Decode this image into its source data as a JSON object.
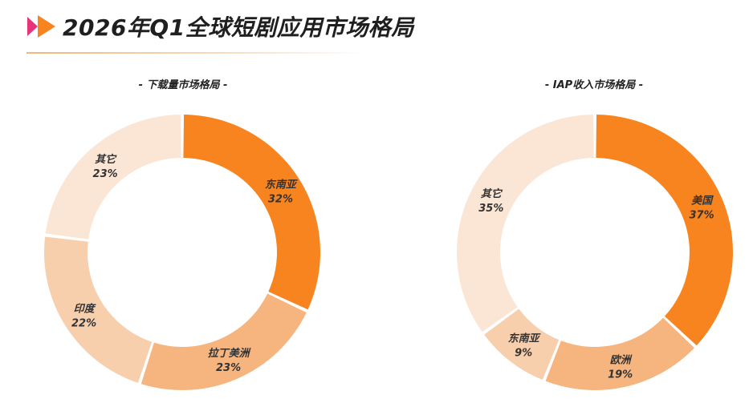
{
  "page": {
    "title": "2026年Q1全球短剧应用市场格局"
  },
  "colors": {
    "logo_pink": "#e8337a",
    "logo_orange": "#f7841f",
    "accent_orange": "#f7841f"
  },
  "chart_data": [
    {
      "type": "pie",
      "title": "- 下载量市场格局 -",
      "categories": [
        "东南亚",
        "拉丁美洲",
        "印度",
        "其它"
      ],
      "values": [
        32,
        23,
        22,
        23
      ],
      "value_labels": [
        "32%",
        "23%",
        "22%",
        "23%"
      ],
      "colors": [
        "#f7841f",
        "#f6b47e",
        "#f8cfad",
        "#fbe6d6"
      ],
      "donut": true,
      "legend": "none"
    },
    {
      "type": "pie",
      "title": "- IAP收入市场格局 -",
      "categories": [
        "美国",
        "欧洲",
        "东南亚",
        "其它"
      ],
      "values": [
        37,
        19,
        9,
        35
      ],
      "value_labels": [
        "37%",
        "19%",
        "9%",
        "35%"
      ],
      "colors": [
        "#f7841f",
        "#f6b47e",
        "#f8cfad",
        "#fbe6d6"
      ],
      "donut": true,
      "legend": "none"
    }
  ]
}
